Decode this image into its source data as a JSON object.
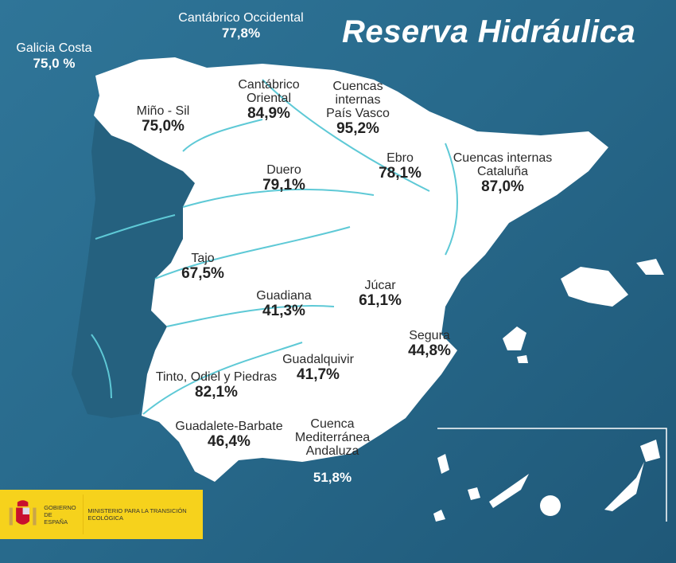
{
  "title": "Reserva Hidráulica",
  "colors": {
    "sea": "#2a6d8f",
    "land": "#ffffff",
    "rivers": "#5ec9d6",
    "logo_bg": "#f6d21c"
  },
  "basins": [
    {
      "name": "Galicia Costa",
      "value": "75,0 %"
    },
    {
      "name": "Cantábrico Occidental",
      "value": "77,8%"
    },
    {
      "name": "Miño - Sil",
      "value": "75,0%"
    },
    {
      "name": "Cantábrico Oriental",
      "value": "84,9%"
    },
    {
      "name": "Cuencas internas País Vasco",
      "value": "95,2%"
    },
    {
      "name": "Ebro",
      "value": "78,1%"
    },
    {
      "name": "Cuencas internas Cataluña",
      "value": "87,0%"
    },
    {
      "name": "Duero",
      "value": "79,1%"
    },
    {
      "name": "Tajo",
      "value": "67,5%"
    },
    {
      "name": "Guadiana",
      "value": "41,3%"
    },
    {
      "name": "Júcar",
      "value": "61,1%"
    },
    {
      "name": "Segura",
      "value": "44,8%"
    },
    {
      "name": "Guadalquivir",
      "value": "41,7%"
    },
    {
      "name": "Tinto, Odiel y Piedras",
      "value": "82,1%"
    },
    {
      "name": "Guadalete-Barbate",
      "value": "46,4%"
    },
    {
      "name": "Cuenca Mediterránea Andaluza",
      "value": "51,8%"
    }
  ],
  "logo": {
    "line1": "GOBIERNO DE ESPAÑA",
    "line2": "MINISTERIO PARA LA TRANSICIÓN ECOLÓGICA"
  }
}
